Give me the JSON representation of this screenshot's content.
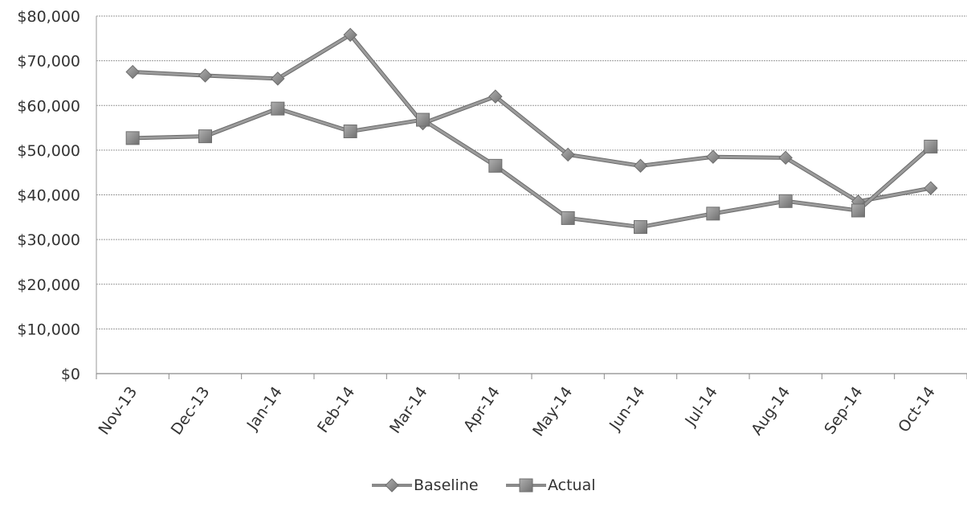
{
  "chart_data": {
    "type": "line",
    "categories": [
      "Nov-13",
      "Dec-13",
      "Jan-14",
      "Feb-14",
      "Mar-14",
      "Apr-14",
      "May-14",
      "Jun-14",
      "Jul-14",
      "Aug-14",
      "Sep-14",
      "Oct-14"
    ],
    "series": [
      {
        "name": "Baseline",
        "marker": "diamond",
        "color": "#8a8a8a",
        "values": [
          67500,
          66700,
          66000,
          75800,
          56000,
          62000,
          49000,
          46500,
          48500,
          48300,
          38500,
          41500
        ]
      },
      {
        "name": "Actual",
        "marker": "square",
        "color": "#8a8a8a",
        "values": [
          52700,
          53100,
          59300,
          54200,
          56800,
          46500,
          34800,
          32800,
          35800,
          38600,
          36500,
          50800
        ]
      }
    ],
    "y_ticks": [
      "$0",
      "$10,000",
      "$20,000",
      "$30,000",
      "$40,000",
      "$50,000",
      "$60,000",
      "$70,000",
      "$80,000"
    ],
    "ylim": [
      0,
      80000
    ],
    "y_step": 10000,
    "grid": true,
    "legend_position": "bottom"
  }
}
